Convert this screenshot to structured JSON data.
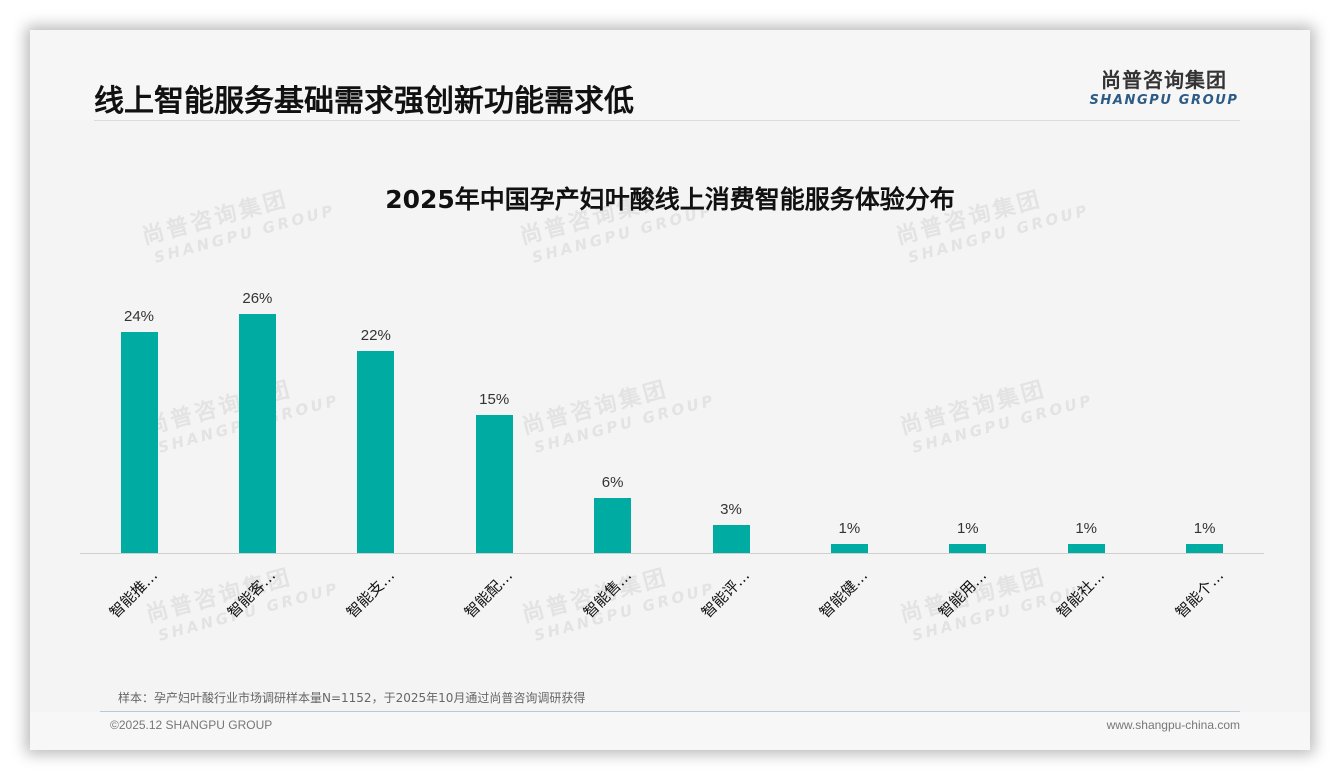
{
  "slide": {
    "title": "线上智能服务基础需求强创新功能需求低",
    "logo": {
      "cn": "尚普咨询集团",
      "en": "SHANGPU GROUP"
    },
    "watermark": {
      "cn": "尚普咨询集团",
      "en": "SHANGPU GROUP"
    },
    "note": "样本：孕产妇叶酸行业市场调研样本量N=1152，于2025年10月通过尚普咨询调研获得",
    "copyright": "©2025.12 SHANGPU GROUP",
    "website": "www.shangpu-china.com",
    "colors": {
      "bar": "#00aca1",
      "logo_en": "#2b5b86"
    }
  },
  "chart_data": {
    "type": "bar",
    "title": "2025年中国孕产妇叶酸线上消费智能服务体验分布",
    "categories": [
      "智能推…",
      "智能客…",
      "智能支…",
      "智能配…",
      "智能售…",
      "智能评…",
      "智能健…",
      "智能用…",
      "智能社…",
      "智能个…"
    ],
    "values": [
      24,
      26,
      22,
      15,
      6,
      3,
      1,
      1,
      1,
      1
    ],
    "value_labels": [
      "24%",
      "26%",
      "22%",
      "15%",
      "6%",
      "3%",
      "1%",
      "1%",
      "1%",
      "1%"
    ],
    "xlabel": "",
    "ylabel": "",
    "ylim": [
      0,
      26
    ],
    "grid": false,
    "legend": null,
    "unit": "%"
  }
}
